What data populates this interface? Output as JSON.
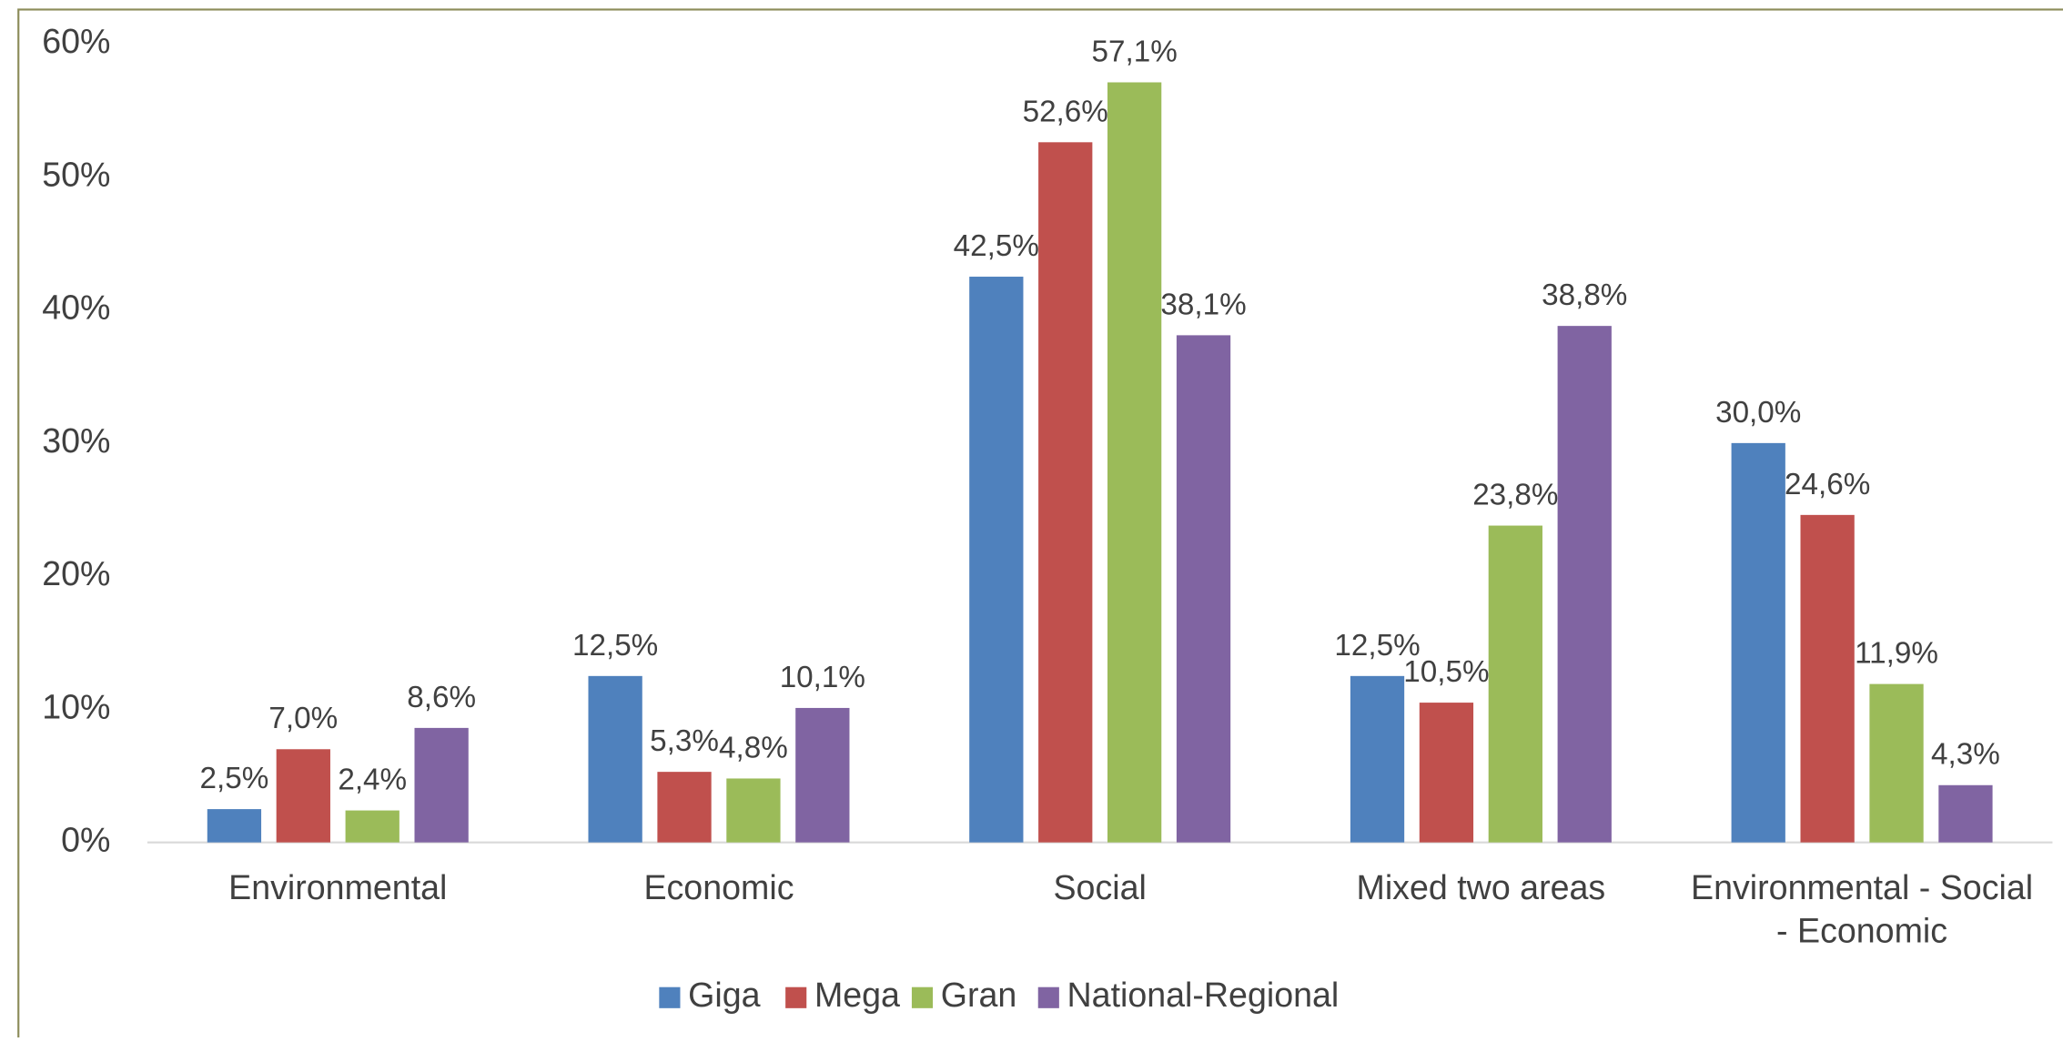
{
  "chart_data": {
    "type": "bar",
    "categories": [
      "Environmental",
      "Economic",
      "Social",
      "Mixed two areas",
      "Environmental - Social - Economic"
    ],
    "series": [
      {
        "name": "Giga",
        "color": "#4f81bd",
        "values": [
          2.5,
          12.5,
          42.5,
          12.5,
          30.0
        ],
        "value_labels": [
          "2,5%",
          "12,5%",
          "42,5%",
          "12,5%",
          "30,0%"
        ]
      },
      {
        "name": "Mega",
        "color": "#c0504d",
        "values": [
          7.0,
          5.3,
          52.6,
          10.5,
          24.6
        ],
        "value_labels": [
          "7,0%",
          "5,3%",
          "52,6%",
          "10,5%",
          "24,6%"
        ]
      },
      {
        "name": "Gran",
        "color": "#9bbb59",
        "values": [
          2.4,
          4.8,
          57.1,
          23.8,
          11.9
        ],
        "value_labels": [
          "2,4%",
          "4,8%",
          "57,1%",
          "23,8%",
          "11,9%"
        ]
      },
      {
        "name": "National-Regional",
        "color": "#8064a2",
        "values": [
          8.6,
          10.1,
          38.1,
          38.8,
          4.3
        ],
        "value_labels": [
          "8,6%",
          "10,1%",
          "38,1%",
          "38,8%",
          "4,3%"
        ]
      }
    ],
    "ylim": [
      0,
      60
    ],
    "yticks": [
      {
        "value": 0,
        "label": "0%"
      },
      {
        "value": 10,
        "label": "10%"
      },
      {
        "value": 20,
        "label": "20%"
      },
      {
        "value": 30,
        "label": "30%"
      },
      {
        "value": 40,
        "label": "40%"
      },
      {
        "value": 50,
        "label": "50%"
      },
      {
        "value": 60,
        "label": "60%"
      }
    ],
    "grid": false,
    "legend": "bottom"
  }
}
